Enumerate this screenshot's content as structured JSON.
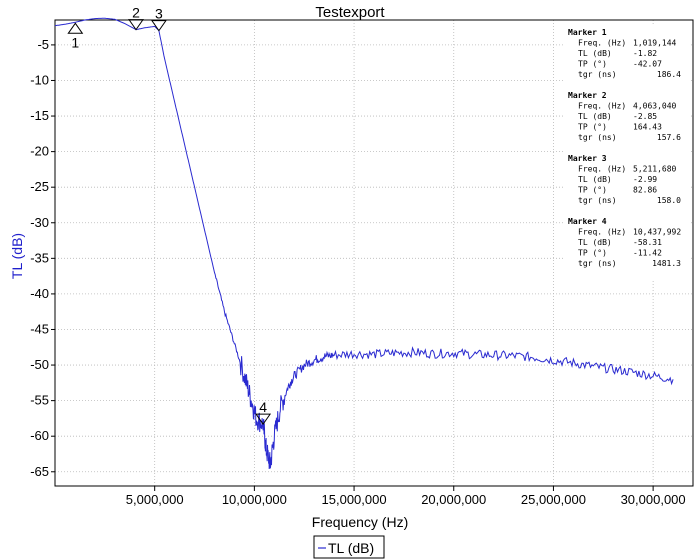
{
  "colors": {
    "series": "#2a2ad0",
    "grid": "#b8b8b8",
    "ylabel": "#1f1fcc"
  },
  "chart_data": {
    "type": "line",
    "title": "Testexport",
    "xlabel": "Frequency (Hz)",
    "ylabel": "TL (dB)",
    "xlim": [
      0,
      32000000
    ],
    "ylim": [
      -67,
      -1.5
    ],
    "xticks": [
      5000000,
      10000000,
      15000000,
      20000000,
      25000000,
      30000000
    ],
    "xtick_labels": [
      "5,000,000",
      "10,000,000",
      "15,000,000",
      "20,000,000",
      "25,000,000",
      "30,000,000"
    ],
    "yticks": [
      -5,
      -10,
      -15,
      -20,
      -25,
      -30,
      -35,
      -40,
      -45,
      -50,
      -55,
      -60,
      -65
    ],
    "ytick_labels": [
      "-5",
      "-10",
      "-15",
      "-20",
      "-25",
      "-30",
      "-35",
      "-40",
      "-45",
      "-50",
      "-55",
      "-60",
      "-65"
    ],
    "grid": true,
    "legend": {
      "position": "bottom-center",
      "entries": [
        "TL (dB)"
      ]
    },
    "series": [
      {
        "name": "TL (dB)",
        "x": [
          0,
          500000,
          1019144,
          1500000,
          2000000,
          2500000,
          3000000,
          3500000,
          4063040,
          4500000,
          5000000,
          5211680,
          5500000,
          6000000,
          6500000,
          7000000,
          7500000,
          8000000,
          8500000,
          9000000,
          9500000,
          9800000,
          10100000,
          10437992,
          10600000,
          10800000,
          11000000,
          11300000,
          11700000,
          12000000,
          12500000,
          13000000,
          13500000,
          14000000,
          15000000,
          16000000,
          17000000,
          18000000,
          19000000,
          20000000,
          21000000,
          22000000,
          23000000,
          24000000,
          25000000,
          26000000,
          27000000,
          28000000,
          29000000,
          30000000,
          31000000
        ],
        "y": [
          -2.3,
          -2.1,
          -1.82,
          -1.5,
          -1.3,
          -1.25,
          -1.4,
          -2.0,
          -2.85,
          -2.6,
          -2.4,
          -2.99,
          -7,
          -13,
          -19,
          -25,
          -31,
          -37,
          -42.5,
          -47,
          -51.5,
          -54.5,
          -57.5,
          -58.31,
          -62,
          -64,
          -60,
          -56,
          -53,
          -51.5,
          -50,
          -49.3,
          -48.8,
          -48.6,
          -48.4,
          -48.5,
          -48.3,
          -48.2,
          -48.4,
          -48.3,
          -48.5,
          -48.6,
          -48.7,
          -48.9,
          -49.3,
          -49.7,
          -50.2,
          -50.6,
          -51,
          -51.5,
          -52
        ]
      }
    ],
    "markers": [
      {
        "label": "1",
        "x": 1019144,
        "y": -1.82,
        "direction": "up"
      },
      {
        "label": "2",
        "x": 4063040,
        "y": -2.85,
        "direction": "down"
      },
      {
        "label": "3",
        "x": 5211680,
        "y": -2.99,
        "direction": "down"
      },
      {
        "label": "4",
        "x": 10437992,
        "y": -58.31,
        "direction": "down"
      }
    ],
    "annotations": [
      {
        "title": "Marker 1",
        "rows": [
          [
            "Freq. (Hz)",
            "1,019,144"
          ],
          [
            "TL (dB)",
            "-1.82"
          ],
          [
            "TP (°)",
            "-42.07"
          ],
          [
            "tgr (ns)",
            "186.4"
          ]
        ]
      },
      {
        "title": "Marker 2",
        "rows": [
          [
            "Freq. (Hz)",
            "4,063,040"
          ],
          [
            "TL (dB)",
            "-2.85"
          ],
          [
            "TP (°)",
            "164.43"
          ],
          [
            "tgr (ns)",
            "157.6"
          ]
        ]
      },
      {
        "title": "Marker 3",
        "rows": [
          [
            "Freq. (Hz)",
            "5,211,680"
          ],
          [
            "TL (dB)",
            "-2.99"
          ],
          [
            "TP (°)",
            "82.86"
          ],
          [
            "tgr (ns)",
            "158.0"
          ]
        ]
      },
      {
        "title": "Marker 4",
        "rows": [
          [
            "Freq. (Hz)",
            "10,437,992"
          ],
          [
            "TL (dB)",
            "-58.31"
          ],
          [
            "TP (°)",
            "-11.42"
          ],
          [
            "tgr (ns)",
            "1481.3"
          ]
        ]
      }
    ]
  }
}
